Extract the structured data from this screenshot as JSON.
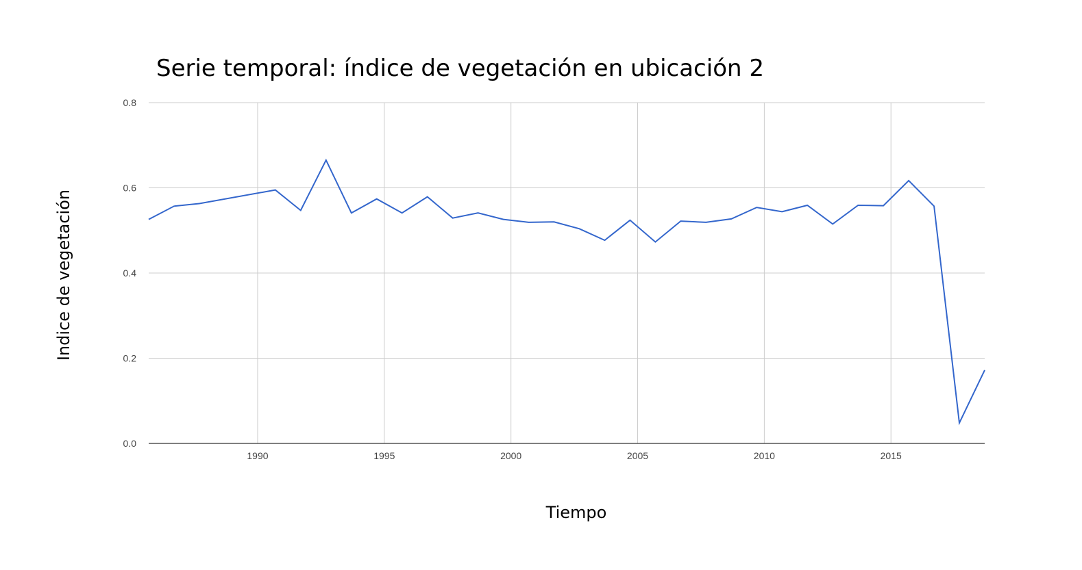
{
  "chart_data": {
    "type": "line",
    "title": "Serie temporal: índice de vegetación en ubicación 2",
    "xlabel": "Tiempo",
    "ylabel": "Indice de vegetación",
    "xlim": [
      1985.7,
      2018.7
    ],
    "ylim": [
      0,
      0.8
    ],
    "xticks": [
      1990,
      1995,
      2000,
      2005,
      2010,
      2015
    ],
    "yticks": [
      0.0,
      0.2,
      0.4,
      0.6,
      0.8
    ],
    "xtick_labels": [
      "1990",
      "1995",
      "2000",
      "2005",
      "2010",
      "2015"
    ],
    "ytick_labels": [
      "0.0",
      "0.2",
      "0.4",
      "0.6",
      "0.8"
    ],
    "grid": true,
    "legend": "none",
    "series": [
      {
        "color": "#3366cc",
        "x": [
          1985.7,
          1986.7,
          1987.7,
          1990.7,
          1991.7,
          1992.7,
          1993.7,
          1994.7,
          1995.7,
          1996.7,
          1997.7,
          1998.7,
          1999.7,
          2000.7,
          2001.7,
          2002.7,
          2003.7,
          2004.7,
          2005.7,
          2006.7,
          2007.7,
          2008.7,
          2009.7,
          2010.7,
          2011.7,
          2012.7,
          2013.7,
          2014.7,
          2015.7,
          2016.7,
          2017.7,
          2018.7
        ],
        "values": [
          0.526,
          0.557,
          0.563,
          0.595,
          0.547,
          0.665,
          0.541,
          0.574,
          0.541,
          0.579,
          0.529,
          0.541,
          0.526,
          0.519,
          0.52,
          0.504,
          0.477,
          0.524,
          0.473,
          0.522,
          0.519,
          0.527,
          0.554,
          0.544,
          0.559,
          0.515,
          0.559,
          0.558,
          0.617,
          0.557,
          0.048,
          0.172
        ]
      }
    ]
  }
}
